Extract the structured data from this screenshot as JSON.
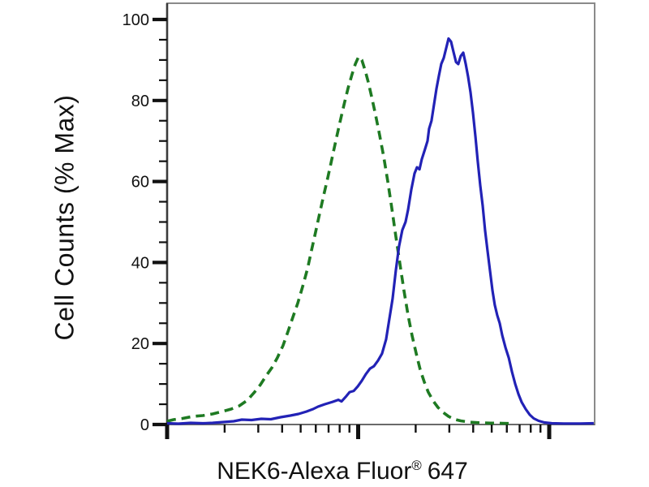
{
  "labels": {
    "y_axis_title": "Cell Counts (% Max)",
    "x_axis_title_pre": "NEK6-Alexa Fluor",
    "x_axis_title_sup": "®",
    "x_axis_title_post": "647"
  },
  "colors": {
    "background": "#ffffff",
    "frame_gray": "#8a8a8a",
    "axis_dark": "#3a3a3a",
    "bottom_axis": "#6a6a6a",
    "tick": "#111111",
    "blue_series": "#2222b6",
    "green_series": "#1e7a22"
  },
  "chart_data": {
    "type": "line",
    "subtype": "flow-cytometry-histogram-overlay",
    "title": "",
    "xlabel": "NEK6-Alexa Fluor® 647",
    "ylabel": "Cell Counts (% Max)",
    "x_scale": "log10",
    "x_axis_numeric_labels_visible": false,
    "x_range_decades": [
      0,
      2.238
    ],
    "x_major_tick_decades": [
      0,
      1,
      2
    ],
    "x_minor_ticks": "log positions 2-9 within each decade",
    "ylim": [
      0,
      100
    ],
    "y_major_ticks": [
      0,
      20,
      40,
      60,
      80,
      100
    ],
    "y_minor_tick_step": 5,
    "grid": false,
    "legend": "none",
    "series": [
      {
        "name": "green-dashed-curve",
        "style": "dashed",
        "color": "#1e7a22",
        "peak": {
          "decade": 1.0,
          "percent_max": 91
        },
        "points": [
          [
            0.0,
            0.8
          ],
          [
            0.034,
            1.2
          ],
          [
            0.081,
            1.5
          ],
          [
            0.136,
            2.0
          ],
          [
            0.187,
            2.2
          ],
          [
            0.238,
            2.6
          ],
          [
            0.289,
            3.2
          ],
          [
            0.335,
            3.8
          ],
          [
            0.378,
            4.6
          ],
          [
            0.42,
            6.0
          ],
          [
            0.454,
            7.8
          ],
          [
            0.488,
            9.8
          ],
          [
            0.518,
            12.0
          ],
          [
            0.548,
            14.0
          ],
          [
            0.577,
            16.5
          ],
          [
            0.607,
            19.5
          ],
          [
            0.633,
            23.0
          ],
          [
            0.658,
            26.5
          ],
          [
            0.684,
            30.0
          ],
          [
            0.709,
            34.0
          ],
          [
            0.735,
            38.5
          ],
          [
            0.756,
            43.0
          ],
          [
            0.777,
            47.5
          ],
          [
            0.798,
            52.0
          ],
          [
            0.819,
            56.5
          ],
          [
            0.841,
            61.0
          ],
          [
            0.862,
            65.5
          ],
          [
            0.883,
            70.0
          ],
          [
            0.904,
            74.5
          ],
          [
            0.926,
            79.0
          ],
          [
            0.947,
            83.0
          ],
          [
            0.968,
            86.5
          ],
          [
            0.985,
            89.0
          ],
          [
            1.002,
            90.8
          ],
          [
            1.019,
            90.0
          ],
          [
            1.036,
            87.5
          ],
          [
            1.053,
            84.5
          ],
          [
            1.07,
            81.0
          ],
          [
            1.091,
            76.5
          ],
          [
            1.112,
            71.5
          ],
          [
            1.134,
            66.0
          ],
          [
            1.155,
            60.0
          ],
          [
            1.176,
            53.5
          ],
          [
            1.197,
            46.5
          ],
          [
            1.219,
            39.5
          ],
          [
            1.24,
            33.0
          ],
          [
            1.261,
            27.0
          ],
          [
            1.282,
            22.0
          ],
          [
            1.304,
            17.5
          ],
          [
            1.325,
            13.5
          ],
          [
            1.346,
            10.5
          ],
          [
            1.367,
            8.0
          ],
          [
            1.393,
            5.8
          ],
          [
            1.418,
            4.2
          ],
          [
            1.444,
            3.0
          ],
          [
            1.473,
            2.0
          ],
          [
            1.503,
            1.3
          ],
          [
            1.537,
            0.9
          ],
          [
            1.58,
            0.6
          ],
          [
            1.631,
            0.45
          ],
          [
            1.694,
            0.35
          ],
          [
            1.758,
            0.3
          ],
          [
            1.817,
            0.25
          ]
        ]
      },
      {
        "name": "blue-solid-curve",
        "style": "solid",
        "color": "#2222b6",
        "peak": {
          "decade": 1.473,
          "percent_max": 95.3
        },
        "points": [
          [
            0.0,
            0.3
          ],
          [
            0.059,
            0.2
          ],
          [
            0.123,
            0.4
          ],
          [
            0.187,
            0.3
          ],
          [
            0.238,
            0.4
          ],
          [
            0.293,
            0.6
          ],
          [
            0.348,
            0.8
          ],
          [
            0.391,
            1.2
          ],
          [
            0.442,
            1.1
          ],
          [
            0.493,
            1.4
          ],
          [
            0.543,
            1.3
          ],
          [
            0.594,
            1.8
          ],
          [
            0.645,
            2.2
          ],
          [
            0.688,
            2.6
          ],
          [
            0.73,
            3.2
          ],
          [
            0.764,
            3.8
          ],
          [
            0.79,
            4.4
          ],
          [
            0.824,
            5.0
          ],
          [
            0.866,
            5.6
          ],
          [
            0.896,
            6.1
          ],
          [
            0.913,
            5.7
          ],
          [
            0.934,
            6.8
          ],
          [
            0.955,
            8.0
          ],
          [
            0.977,
            8.3
          ],
          [
            0.998,
            9.4
          ],
          [
            1.019,
            10.8
          ],
          [
            1.04,
            12.4
          ],
          [
            1.062,
            13.8
          ],
          [
            1.083,
            14.4
          ],
          [
            1.104,
            15.8
          ],
          [
            1.125,
            17.5
          ],
          [
            1.146,
            21.0
          ],
          [
            1.163,
            26.0
          ],
          [
            1.18,
            31.0
          ],
          [
            1.197,
            38.0
          ],
          [
            1.214,
            44.0
          ],
          [
            1.231,
            48.0
          ],
          [
            1.248,
            50.0
          ],
          [
            1.261,
            53.0
          ],
          [
            1.278,
            58.0
          ],
          [
            1.295,
            62.0
          ],
          [
            1.308,
            63.5
          ],
          [
            1.321,
            63.0
          ],
          [
            1.333,
            65.5
          ],
          [
            1.35,
            68.0
          ],
          [
            1.363,
            70.0
          ],
          [
            1.371,
            73.0
          ],
          [
            1.384,
            75.0
          ],
          [
            1.397,
            79.0
          ],
          [
            1.41,
            83.0
          ],
          [
            1.422,
            86.0
          ],
          [
            1.435,
            89.0
          ],
          [
            1.448,
            90.5
          ],
          [
            1.461,
            93.0
          ],
          [
            1.473,
            95.3
          ],
          [
            1.486,
            94.5
          ],
          [
            1.499,
            92.0
          ],
          [
            1.512,
            89.5
          ],
          [
            1.524,
            89.0
          ],
          [
            1.537,
            91.0
          ],
          [
            1.55,
            91.8
          ],
          [
            1.563,
            89.0
          ],
          [
            1.575,
            86.0
          ],
          [
            1.588,
            82.0
          ],
          [
            1.601,
            77.0
          ],
          [
            1.614,
            71.0
          ],
          [
            1.626,
            65.0
          ],
          [
            1.639,
            59.0
          ],
          [
            1.652,
            54.0
          ],
          [
            1.664,
            48.0
          ],
          [
            1.677,
            43.0
          ],
          [
            1.69,
            38.0
          ],
          [
            1.703,
            33.0
          ],
          [
            1.715,
            29.5
          ],
          [
            1.728,
            27.0
          ],
          [
            1.741,
            25.0
          ],
          [
            1.754,
            22.0
          ],
          [
            1.771,
            19.0
          ],
          [
            1.788,
            16.5
          ],
          [
            1.805,
            13.0
          ],
          [
            1.822,
            10.0
          ],
          [
            1.839,
            7.5
          ],
          [
            1.856,
            5.5
          ],
          [
            1.877,
            3.8
          ],
          [
            1.898,
            2.4
          ],
          [
            1.919,
            1.5
          ],
          [
            1.945,
            0.9
          ],
          [
            1.975,
            0.5
          ],
          [
            2.013,
            0.3
          ],
          [
            2.076,
            0.25
          ],
          [
            2.161,
            0.25
          ],
          [
            2.233,
            0.3
          ]
        ]
      }
    ]
  }
}
